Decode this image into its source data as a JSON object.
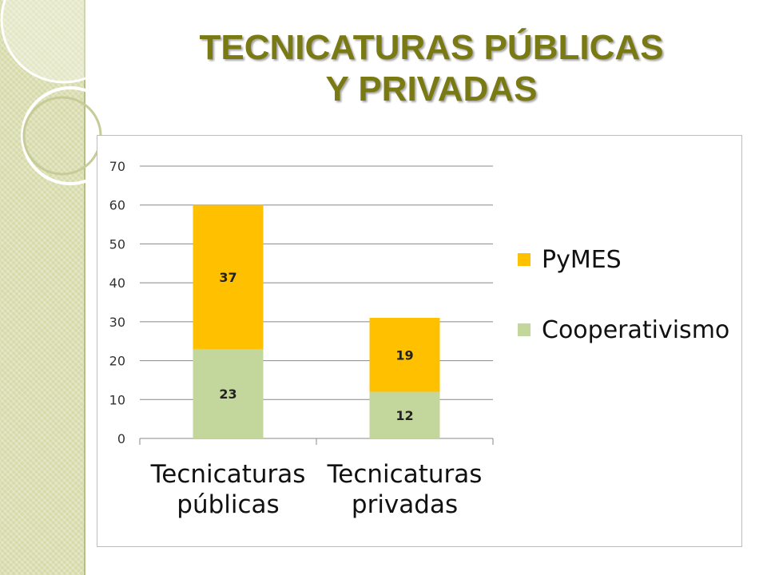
{
  "title": {
    "line1": "TECNICATURAS PÚBLICAS",
    "line2": "Y PRIVADAS"
  },
  "colors": {
    "title": "#7a7a14",
    "pymes": "#ffc000",
    "cooperativismo": "#c3d69b",
    "gridline": "#888888",
    "side_strip": "#d6d9a8"
  },
  "chart_data": {
    "type": "bar",
    "stacked": true,
    "categories": [
      [
        "Tecnicaturas",
        "públicas"
      ],
      [
        "Tecnicaturas",
        "privadas"
      ]
    ],
    "series": [
      {
        "name": "Cooperativismo",
        "values": [
          23,
          12
        ],
        "color": "#c3d69b"
      },
      {
        "name": "PyMES",
        "values": [
          37,
          19
        ],
        "color": "#ffc000"
      }
    ],
    "ylim": [
      0,
      70
    ],
    "yticks": [
      0,
      10,
      20,
      30,
      40,
      50,
      60,
      70
    ],
    "grid": true,
    "legend": "right",
    "legend_order": [
      "PyMES",
      "Cooperativismo"
    ],
    "data_labels": true
  }
}
